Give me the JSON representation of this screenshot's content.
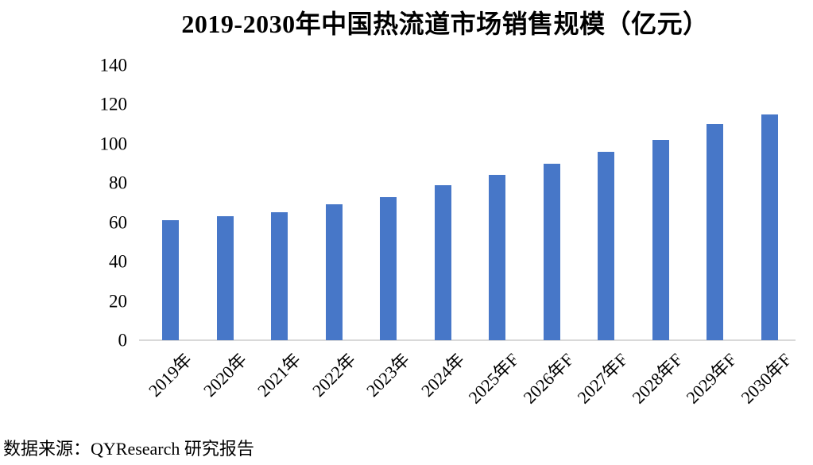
{
  "title": "2019-2030年中国热流道市场销售规模（亿元）",
  "source_note": "数据来源：QYResearch 研究报告",
  "chart_data": {
    "type": "bar",
    "title": "2019-2030年中国热流道市场销售规模（亿元）",
    "categories": [
      "2019年",
      "2020年",
      "2021年",
      "2022年",
      "2023年",
      "2024年",
      "2025年F",
      "2026年F",
      "2027年F",
      "2028年F",
      "2029年F",
      "2030年F"
    ],
    "values": [
      61,
      63,
      65,
      69,
      73,
      79,
      84,
      90,
      96,
      102,
      110,
      115
    ],
    "xlabel": "",
    "ylabel": "",
    "ylim": [
      0,
      140
    ],
    "yticks": [
      0,
      20,
      40,
      60,
      80,
      100,
      120,
      140
    ],
    "grid": false,
    "legend": false,
    "bar_color": "#4777c8",
    "axis_line_color": "#d9d9d9",
    "unit": "亿元"
  }
}
